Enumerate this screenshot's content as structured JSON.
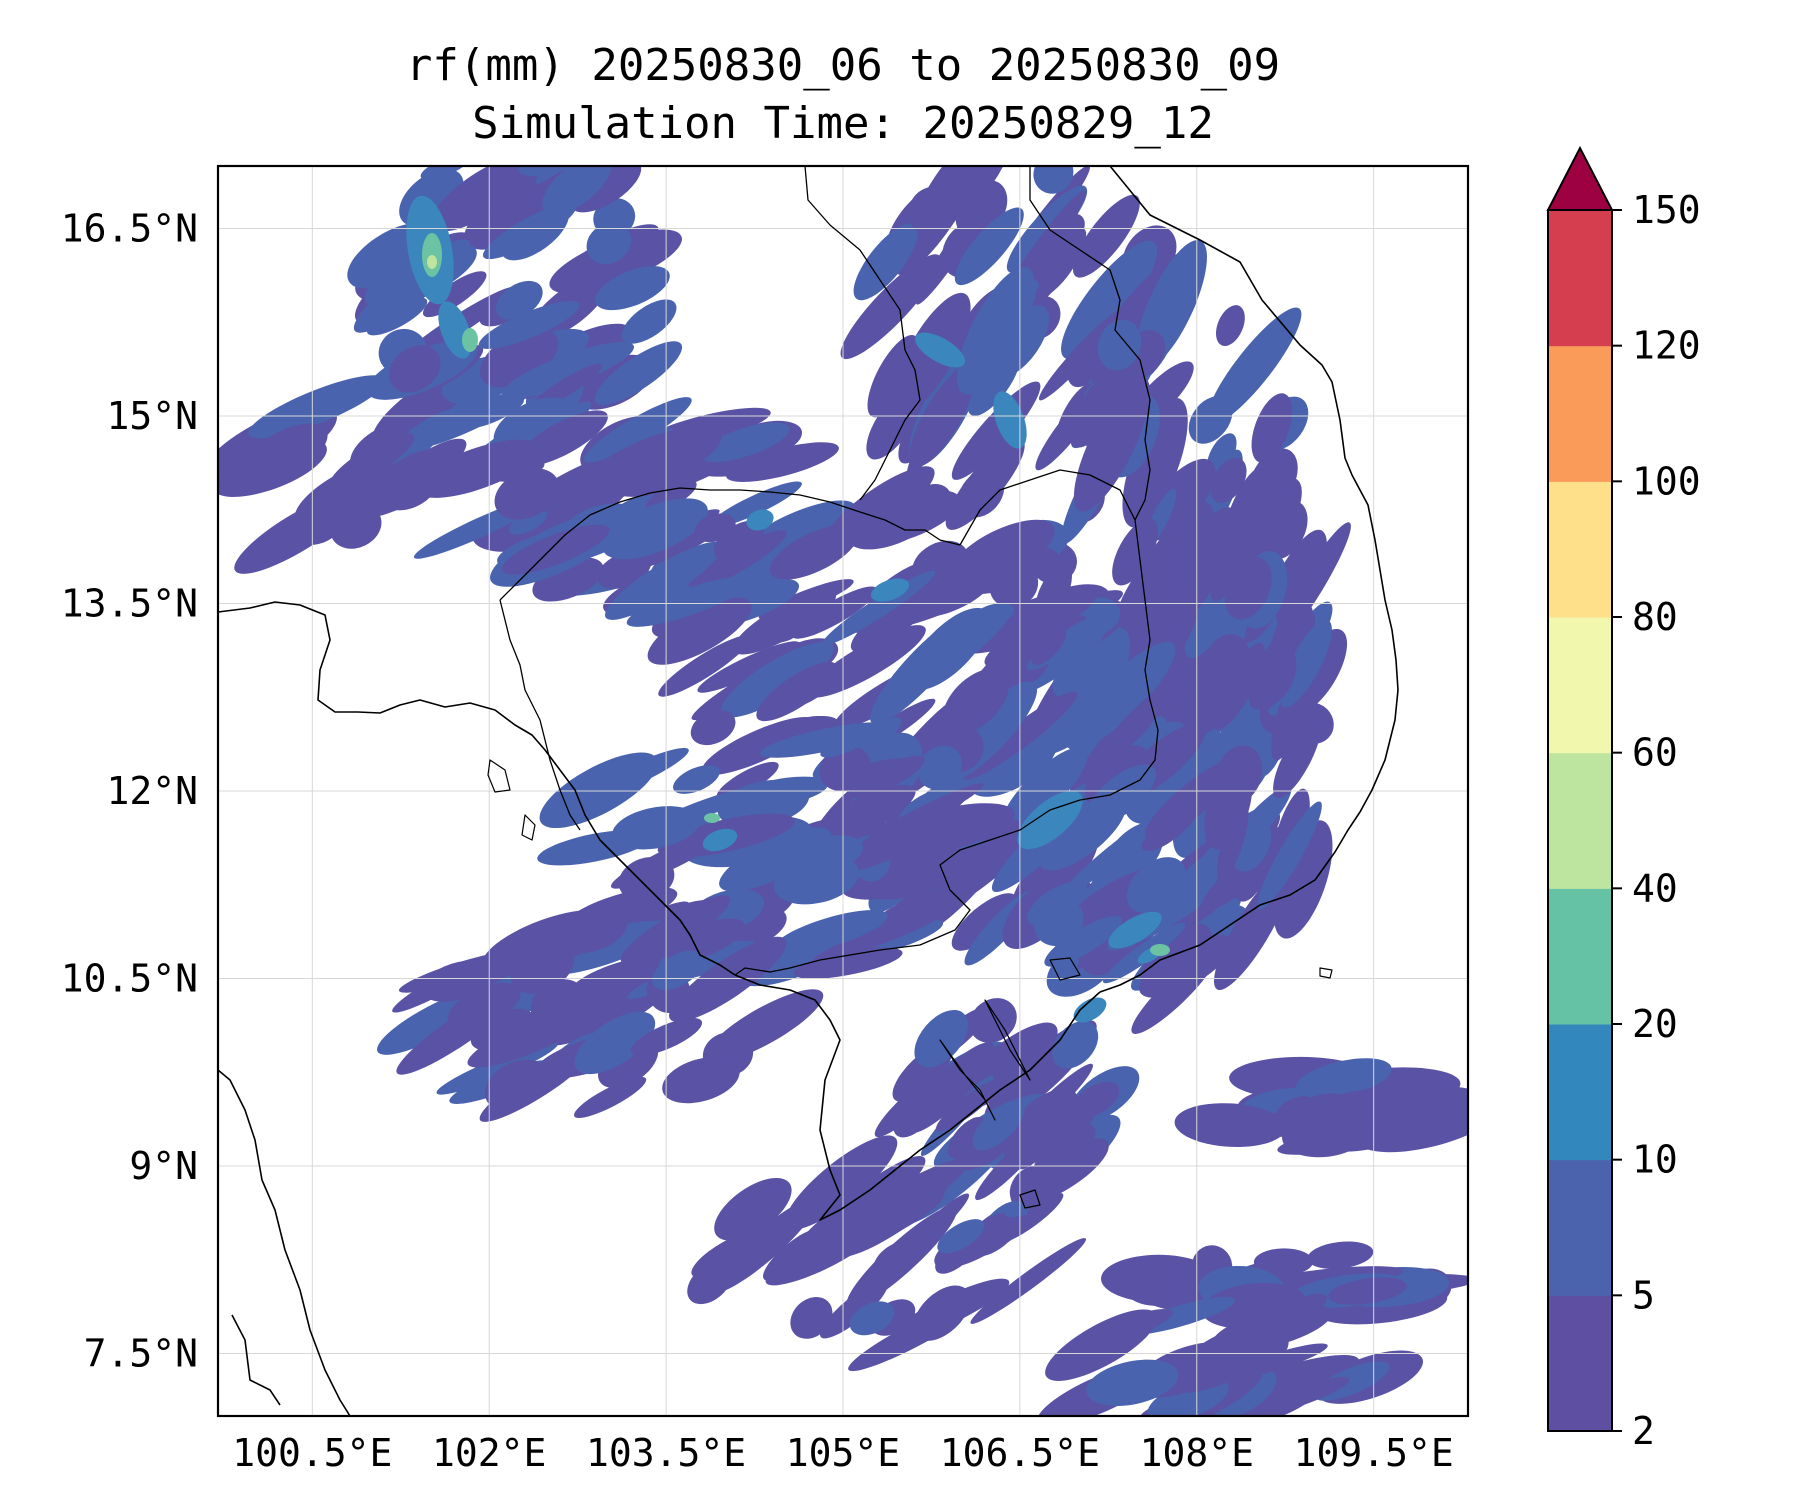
{
  "title": {
    "line1": "rf(mm) 20250830_06 to 20250830_09",
    "line2": "Simulation Time: 20250829_12"
  },
  "map": {
    "lon_range": [
      99.7,
      110.3
    ],
    "lat_range": [
      7.0,
      17.0
    ],
    "x_ticks": [
      {
        "value": 100.5,
        "label": "100.5°E"
      },
      {
        "value": 102.0,
        "label": "102°E"
      },
      {
        "value": 103.5,
        "label": "103.5°E"
      },
      {
        "value": 105.0,
        "label": "105°E"
      },
      {
        "value": 106.5,
        "label": "106.5°E"
      },
      {
        "value": 108.0,
        "label": "108°E"
      },
      {
        "value": 109.5,
        "label": "109.5°E"
      }
    ],
    "y_ticks": [
      {
        "value": 16.5,
        "label": "16.5°N"
      },
      {
        "value": 15.0,
        "label": "15°N"
      },
      {
        "value": 13.5,
        "label": "13.5°N"
      },
      {
        "value": 12.0,
        "label": "12°N"
      },
      {
        "value": 10.5,
        "label": "10.5°N"
      },
      {
        "value": 9.0,
        "label": "9°N"
      },
      {
        "value": 7.5,
        "label": "7.5°N"
      }
    ],
    "grid": true
  },
  "colorbar": {
    "levels": [
      2,
      5,
      10,
      20,
      40,
      60,
      80,
      100,
      120,
      150
    ],
    "colors": [
      "#5e4fa2",
      "#4b62ad",
      "#3288bd",
      "#66c2a5",
      "#bee5a0",
      "#f1f8ad",
      "#fee08b",
      "#fb9b5a",
      "#d53e4f"
    ],
    "extend_color": "#9e0142",
    "extend": "max"
  },
  "rain_colors": {
    "light": "#5a52a4",
    "moderate": "#4a63ae",
    "heavy": "#3a86bd",
    "intense": "#6cc3a3",
    "peak": "#bfe4a0"
  }
}
